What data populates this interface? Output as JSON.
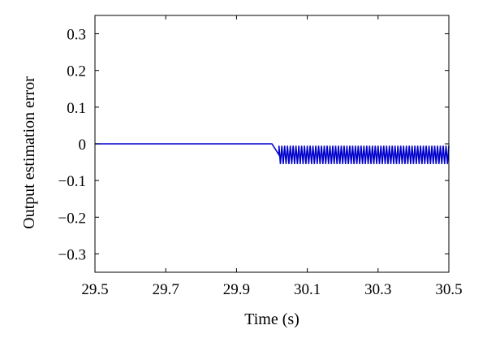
{
  "chart_data": {
    "type": "line",
    "title": "",
    "xlabel": "Time (s)",
    "ylabel": "Output estimation error",
    "xlim": [
      29.5,
      30.5
    ],
    "ylim": [
      -0.35,
      0.35
    ],
    "x_ticks": [
      29.5,
      29.7,
      29.9,
      30.1,
      30.3,
      30.5
    ],
    "x_tick_labels": [
      "29.5",
      "29.7",
      "29.9",
      "30.1",
      "30.3",
      "30.5"
    ],
    "y_ticks": [
      0.3,
      0.2,
      0.1,
      0,
      -0.1,
      -0.2,
      -0.3
    ],
    "y_tick_labels": [
      "0.3",
      "0.2",
      "0.1",
      "0",
      "−0.1",
      "−0.2",
      "−0.3"
    ],
    "grid": false,
    "legend": "none",
    "series": [
      {
        "color": "#0000cc",
        "segments": [
          {
            "kind": "constant",
            "x": [
              29.5,
              30.0
            ],
            "y": 0.0
          },
          {
            "kind": "transition",
            "x": [
              30.0,
              30.02
            ],
            "y": [
              0.0,
              -0.03
            ]
          },
          {
            "kind": "oscillation",
            "x": [
              30.02,
              30.5
            ],
            "y_max": -0.005,
            "y_min": -0.055,
            "period": 0.008
          }
        ]
      }
    ]
  }
}
